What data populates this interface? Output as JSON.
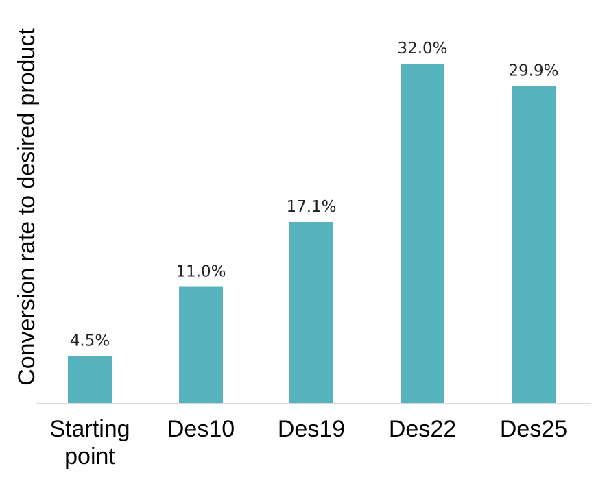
{
  "chart_data": {
    "type": "bar",
    "categories": [
      [
        "Starting",
        "point"
      ],
      [
        "Des10"
      ],
      [
        "Des19"
      ],
      [
        "Des22"
      ],
      [
        "Des25"
      ]
    ],
    "values": [
      4.5,
      11.0,
      17.1,
      32.0,
      29.9
    ],
    "value_labels": [
      "4.5%",
      "11.0%",
      "17.1%",
      "32.0%",
      "29.9%"
    ],
    "ylabel": "Conversion rate to desired product",
    "ylim": [
      0,
      34.2
    ],
    "grid": false,
    "legend": "none",
    "bar_color": "#56b3bd",
    "axis_color": "#d9d9d9"
  }
}
